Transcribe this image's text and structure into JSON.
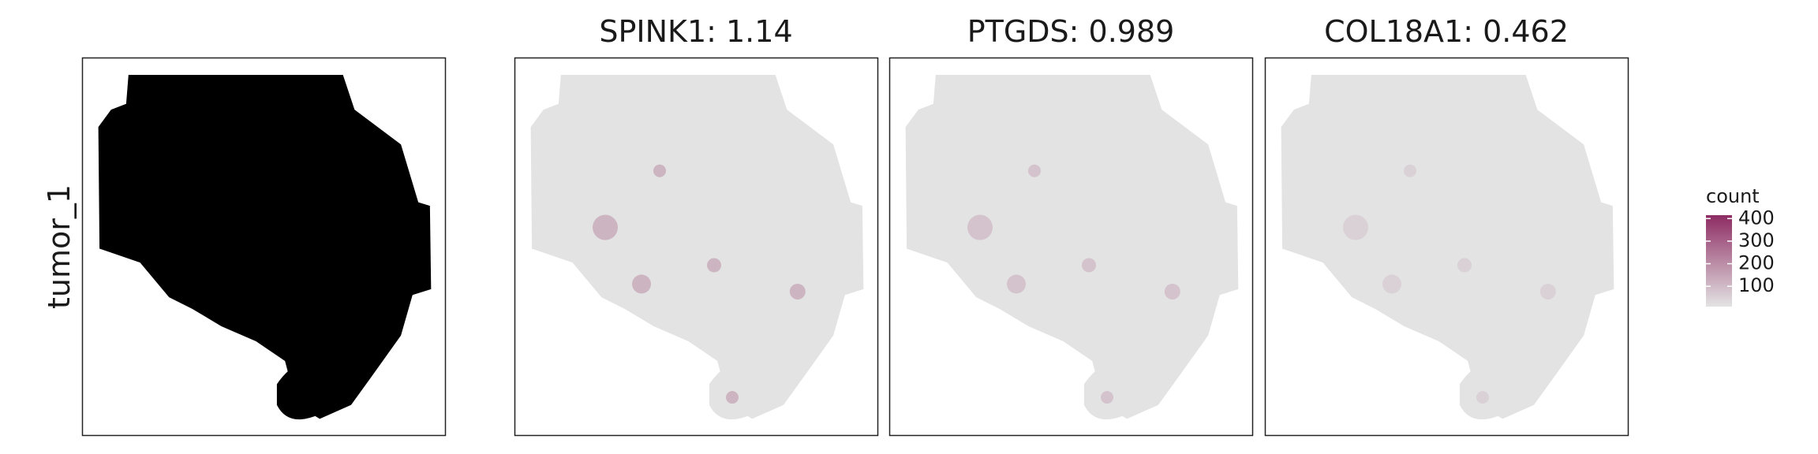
{
  "chart_data": {
    "type": "spatial",
    "row_label": "tumor_1",
    "panels": [
      {
        "title": null,
        "fill": "#000000"
      },
      {
        "title": "SPINK1: 1.14",
        "fill": "#e3e3e3"
      },
      {
        "title": "PTGDS: 0.989",
        "fill": "#e3e3e3"
      },
      {
        "title": "COL18A1: 0.462",
        "fill": "#e3e3e3"
      }
    ],
    "colorbar": {
      "title": "count",
      "lim": [
        10,
        415
      ],
      "ticks": [
        100,
        200,
        300,
        400
      ],
      "colors": [
        "#e3e3e3",
        "#8e2c63"
      ]
    }
  }
}
